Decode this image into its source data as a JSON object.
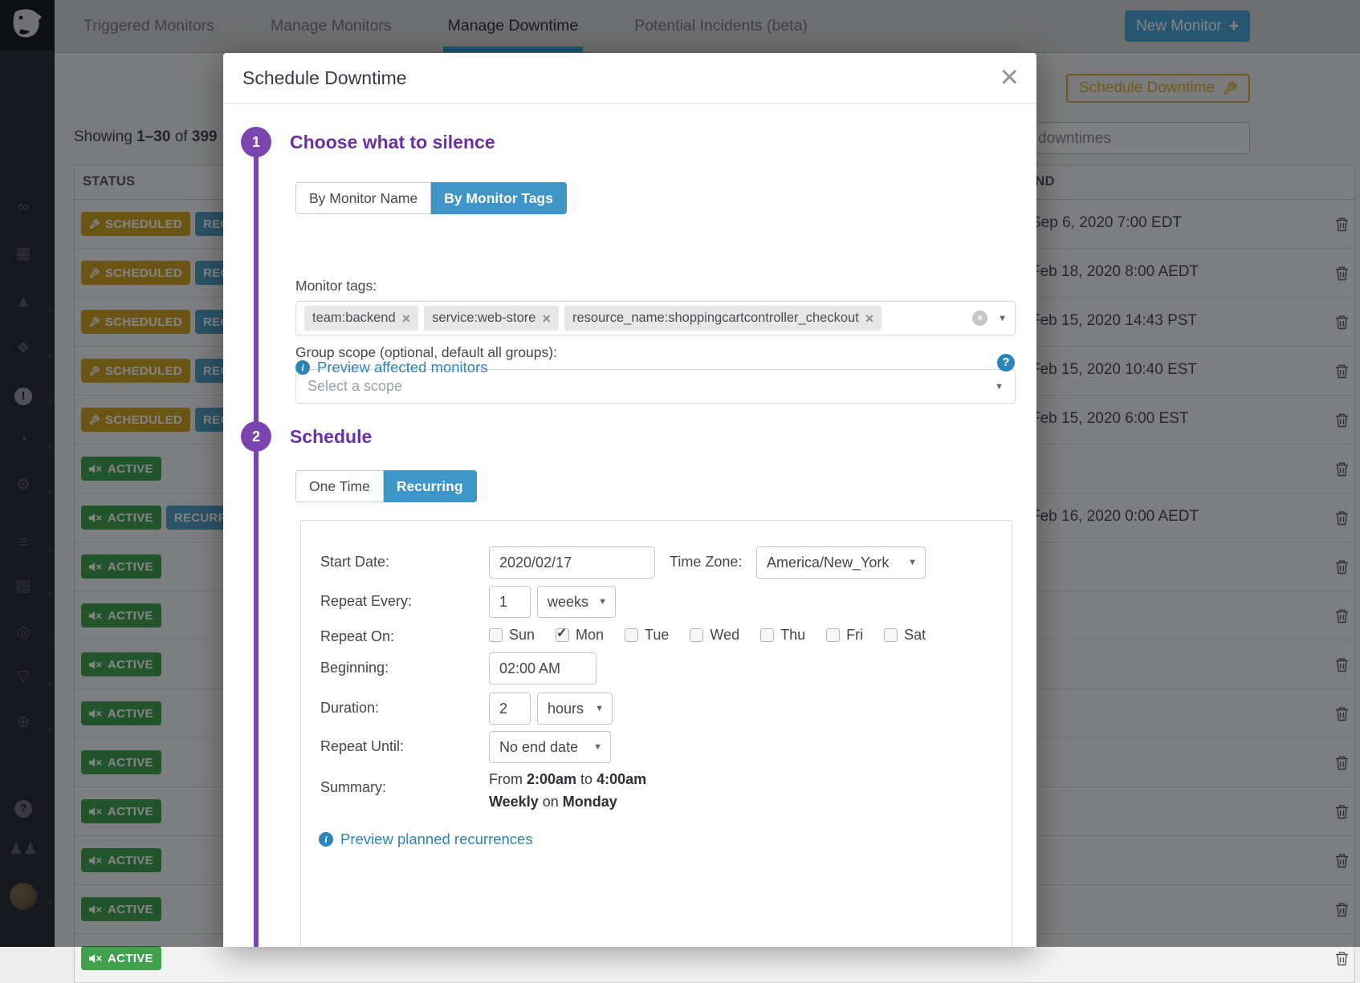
{
  "nav": {
    "tabs": [
      {
        "label": "Triggered Monitors",
        "active": false
      },
      {
        "label": "Manage Monitors",
        "active": false
      },
      {
        "label": "Manage Downtime",
        "active": true
      },
      {
        "label": "Potential Incidents (beta)",
        "active": false
      }
    ],
    "new_monitor_label": "New Monitor",
    "plus_icon": "+"
  },
  "sidebar": {
    "icons": [
      {
        "name": "binoculars-icon",
        "glyph": "∞",
        "chevron": false,
        "bright": false,
        "circle": false
      },
      {
        "name": "dashboards-icon",
        "glyph": "▦",
        "chevron": false,
        "bright": false,
        "circle": false
      },
      {
        "name": "metrics-chart-icon",
        "glyph": "▲",
        "chevron": true,
        "bright": false,
        "circle": false
      },
      {
        "name": "hostmap-hexagons-icon",
        "glyph": "❖",
        "chevron": true,
        "bright": false,
        "circle": false
      },
      {
        "name": "monitors-alert-icon",
        "glyph": "!",
        "chevron": true,
        "bright": true,
        "circle": true
      },
      {
        "name": "apm-gauge-icon",
        "glyph": "◔",
        "chevron": true,
        "bright": false,
        "circle": false
      },
      {
        "name": "integrations-icon",
        "glyph": "⚙",
        "chevron": true,
        "bright": false,
        "circle": false
      },
      {
        "name": "filter-list-icon",
        "glyph": "≡",
        "chevron": true,
        "bright": false,
        "circle": false
      },
      {
        "name": "notebook-icon",
        "glyph": "▤",
        "chevron": true,
        "bright": false,
        "circle": false
      },
      {
        "name": "log-search-icon",
        "glyph": "◎",
        "chevron": true,
        "bright": false,
        "circle": false
      },
      {
        "name": "security-shield-icon",
        "glyph": "▽",
        "chevron": true,
        "bright": false,
        "circle": false
      },
      {
        "name": "synthetics-globe-icon",
        "glyph": "⊕",
        "chevron": true,
        "bright": false,
        "circle": false
      },
      {
        "name": "help-icon",
        "glyph": "?",
        "chevron": false,
        "bright": false,
        "circle": true
      },
      {
        "name": "teams-icon",
        "glyph": "♟♟",
        "chevron": false,
        "bright": false,
        "circle": false
      },
      {
        "name": "user-avatar",
        "glyph": "",
        "chevron": true,
        "bright": false,
        "circle": false
      }
    ]
  },
  "page": {
    "showing_prefix": "Showing",
    "showing_range": "1–30",
    "showing_of": "of",
    "showing_total": "399",
    "schedule_downtime_button": "Schedule Downtime",
    "search_text": "downtimes",
    "status_header": "STATUS",
    "end_header": "END",
    "rows": [
      {
        "badges": [
          {
            "type": "scheduled",
            "label": "SCHEDULED"
          },
          {
            "type": "recurring",
            "label": "RECURRING"
          }
        ],
        "end": "Sep 6, 2020 7:00 EDT"
      },
      {
        "badges": [
          {
            "type": "scheduled",
            "label": "SCHEDULED"
          },
          {
            "type": "recurring",
            "label": "RECURRING"
          }
        ],
        "end": "Feb 18, 2020 8:00 AEDT"
      },
      {
        "badges": [
          {
            "type": "scheduled",
            "label": "SCHEDULED"
          },
          {
            "type": "recurring",
            "label": "RECURRING"
          }
        ],
        "end": "Feb 15, 2020 14:43 PST"
      },
      {
        "badges": [
          {
            "type": "scheduled",
            "label": "SCHEDULED"
          },
          {
            "type": "recurring",
            "label": "RECURRING"
          }
        ],
        "end": "Feb 15, 2020 10:40 EST"
      },
      {
        "badges": [
          {
            "type": "scheduled",
            "label": "SCHEDULED"
          },
          {
            "type": "recurring",
            "label": "RECURRING"
          }
        ],
        "end": "Feb 15, 2020 6:00 EST"
      },
      {
        "badges": [
          {
            "type": "active",
            "label": "ACTIVE"
          }
        ],
        "end": ""
      },
      {
        "badges": [
          {
            "type": "active",
            "label": "ACTIVE"
          },
          {
            "type": "recurring",
            "label": "RECURRING"
          }
        ],
        "end": "Feb 16, 2020 0:00 AEDT"
      },
      {
        "badges": [
          {
            "type": "active",
            "label": "ACTIVE"
          }
        ],
        "end": ""
      },
      {
        "badges": [
          {
            "type": "active",
            "label": "ACTIVE"
          }
        ],
        "end": ""
      },
      {
        "badges": [
          {
            "type": "active",
            "label": "ACTIVE"
          }
        ],
        "end": ""
      },
      {
        "badges": [
          {
            "type": "active",
            "label": "ACTIVE"
          }
        ],
        "end": ""
      },
      {
        "badges": [
          {
            "type": "active",
            "label": "ACTIVE"
          }
        ],
        "end": ""
      },
      {
        "badges": [
          {
            "type": "active",
            "label": "ACTIVE"
          }
        ],
        "end": ""
      },
      {
        "badges": [
          {
            "type": "active",
            "label": "ACTIVE"
          }
        ],
        "end": ""
      },
      {
        "badges": [
          {
            "type": "active",
            "label": "ACTIVE"
          }
        ],
        "end": ""
      },
      {
        "badges": [
          {
            "type": "active",
            "label": "ACTIVE"
          }
        ],
        "end": ""
      }
    ]
  },
  "modal": {
    "title": "Schedule Downtime",
    "close_icon": "×",
    "step1": {
      "number": "1",
      "heading": "Choose what to silence",
      "toggle": [
        {
          "label": "By Monitor Name",
          "active": false
        },
        {
          "label": "By Monitor Tags",
          "active": true
        }
      ],
      "monitor_tags_label": "Monitor tags:",
      "tags": [
        "team:backend",
        "service:web-store",
        "resource_name:shoppingcartcontroller_checkout"
      ],
      "group_scope_label": "Group scope (optional, default all groups):",
      "scope_placeholder": "Select a scope",
      "preview_link": "Preview affected monitors",
      "help_glyph": "?"
    },
    "step2": {
      "number": "2",
      "heading": "Schedule",
      "toggle": [
        {
          "label": "One Time",
          "active": false
        },
        {
          "label": "Recurring",
          "active": true
        }
      ],
      "start_date_label": "Start Date:",
      "start_date_value": "2020/02/17",
      "time_zone_label": "Time Zone:",
      "time_zone_value": "America/New_York",
      "repeat_every_label": "Repeat Every:",
      "repeat_every_value": "1",
      "repeat_every_unit": "weeks",
      "repeat_on_label": "Repeat On:",
      "days": [
        {
          "label": "Sun",
          "checked": false
        },
        {
          "label": "Mon",
          "checked": true
        },
        {
          "label": "Tue",
          "checked": false
        },
        {
          "label": "Wed",
          "checked": false
        },
        {
          "label": "Thu",
          "checked": false
        },
        {
          "label": "Fri",
          "checked": false
        },
        {
          "label": "Sat",
          "checked": false
        }
      ],
      "beginning_label": "Beginning:",
      "beginning_value": "02:00 AM",
      "duration_label": "Duration:",
      "duration_value": "2",
      "duration_unit": "hours",
      "repeat_until_label": "Repeat Until:",
      "repeat_until_value": "No end date",
      "summary_label": "Summary:",
      "summary_line1": [
        {
          "text": "From ",
          "bold": false
        },
        {
          "text": "2:00am",
          "bold": true
        },
        {
          "text": " to ",
          "bold": false
        },
        {
          "text": "4:00am",
          "bold": true
        }
      ],
      "summary_line2": [
        {
          "text": "Weekly",
          "bold": true
        },
        {
          "text": " on ",
          "bold": false
        },
        {
          "text": "Monday",
          "bold": true
        }
      ],
      "preview_link": "Preview planned recurrences"
    }
  },
  "colors": {
    "purple": "#7a45ae",
    "heading_purple": "#6c2da6",
    "toggle_blue": "#3e95c8",
    "link_blue": "#2a85b8",
    "gold": "#d9a92c",
    "badge_scheduled": "#cfa01f",
    "badge_recurring": "#4c9cc3",
    "badge_active": "#3fa14d",
    "nav_underline": "#2ba2cf"
  }
}
